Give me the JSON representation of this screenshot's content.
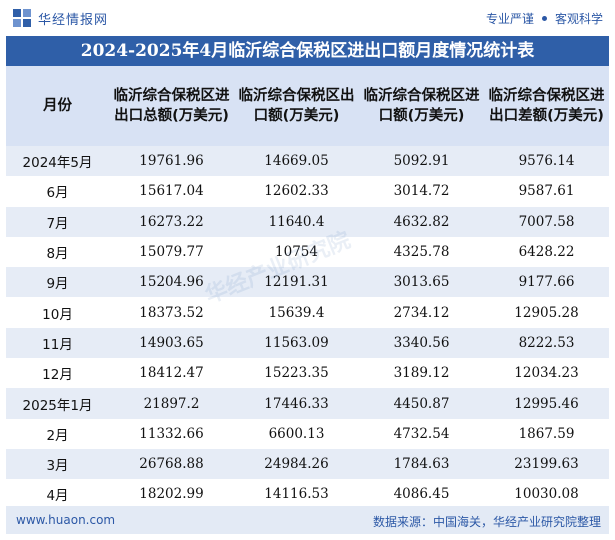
{
  "header": {
    "logo_text": "华经情报网",
    "slogan_left": "专业严谨",
    "slogan_right": "客观科学"
  },
  "title": "2024-2025年4月临沂综合保税区进出口额月度情况统计表",
  "table": {
    "columns": [
      "月份",
      "临沂综合保税区进出口总额(万美元)",
      "临沂综合保税区出口额(万美元)",
      "临沂综合保税区进口额(万美元)",
      "临沂综合保税区进出口差额(万美元)"
    ],
    "rows": [
      [
        "2024年5月",
        "19761.96",
        "14669.05",
        "5092.91",
        "9576.14"
      ],
      [
        "6月",
        "15617.04",
        "12602.33",
        "3014.72",
        "9587.61"
      ],
      [
        "7月",
        "16273.22",
        "11640.4",
        "4632.82",
        "7007.58"
      ],
      [
        "8月",
        "15079.77",
        "10754",
        "4325.78",
        "6428.22"
      ],
      [
        "9月",
        "15204.96",
        "12191.31",
        "3013.65",
        "9177.66"
      ],
      [
        "10月",
        "18373.52",
        "15639.4",
        "2734.12",
        "12905.28"
      ],
      [
        "11月",
        "14903.65",
        "11563.09",
        "3340.56",
        "8222.53"
      ],
      [
        "12月",
        "18412.47",
        "15223.35",
        "3189.12",
        "12034.23"
      ],
      [
        "2025年1月",
        "21897.2",
        "17446.33",
        "4450.87",
        "12995.46"
      ],
      [
        "2月",
        "11332.66",
        "6600.13",
        "4732.54",
        "1867.59"
      ],
      [
        "3月",
        "26768.88",
        "24984.26",
        "1784.63",
        "23199.63"
      ],
      [
        "4月",
        "18202.99",
        "14116.53",
        "4086.45",
        "10030.08"
      ]
    ]
  },
  "footer": {
    "url": "www.huaon.com",
    "source": "数据来源：中国海关，华经产业研究院整理"
  },
  "watermark_text": "华经产业研究院",
  "colors": {
    "title_bg": "#2f5fa8",
    "header_bg": "#d8e2f4",
    "stripe": "#e6ecf6",
    "brand_text": "#2c58a6"
  }
}
